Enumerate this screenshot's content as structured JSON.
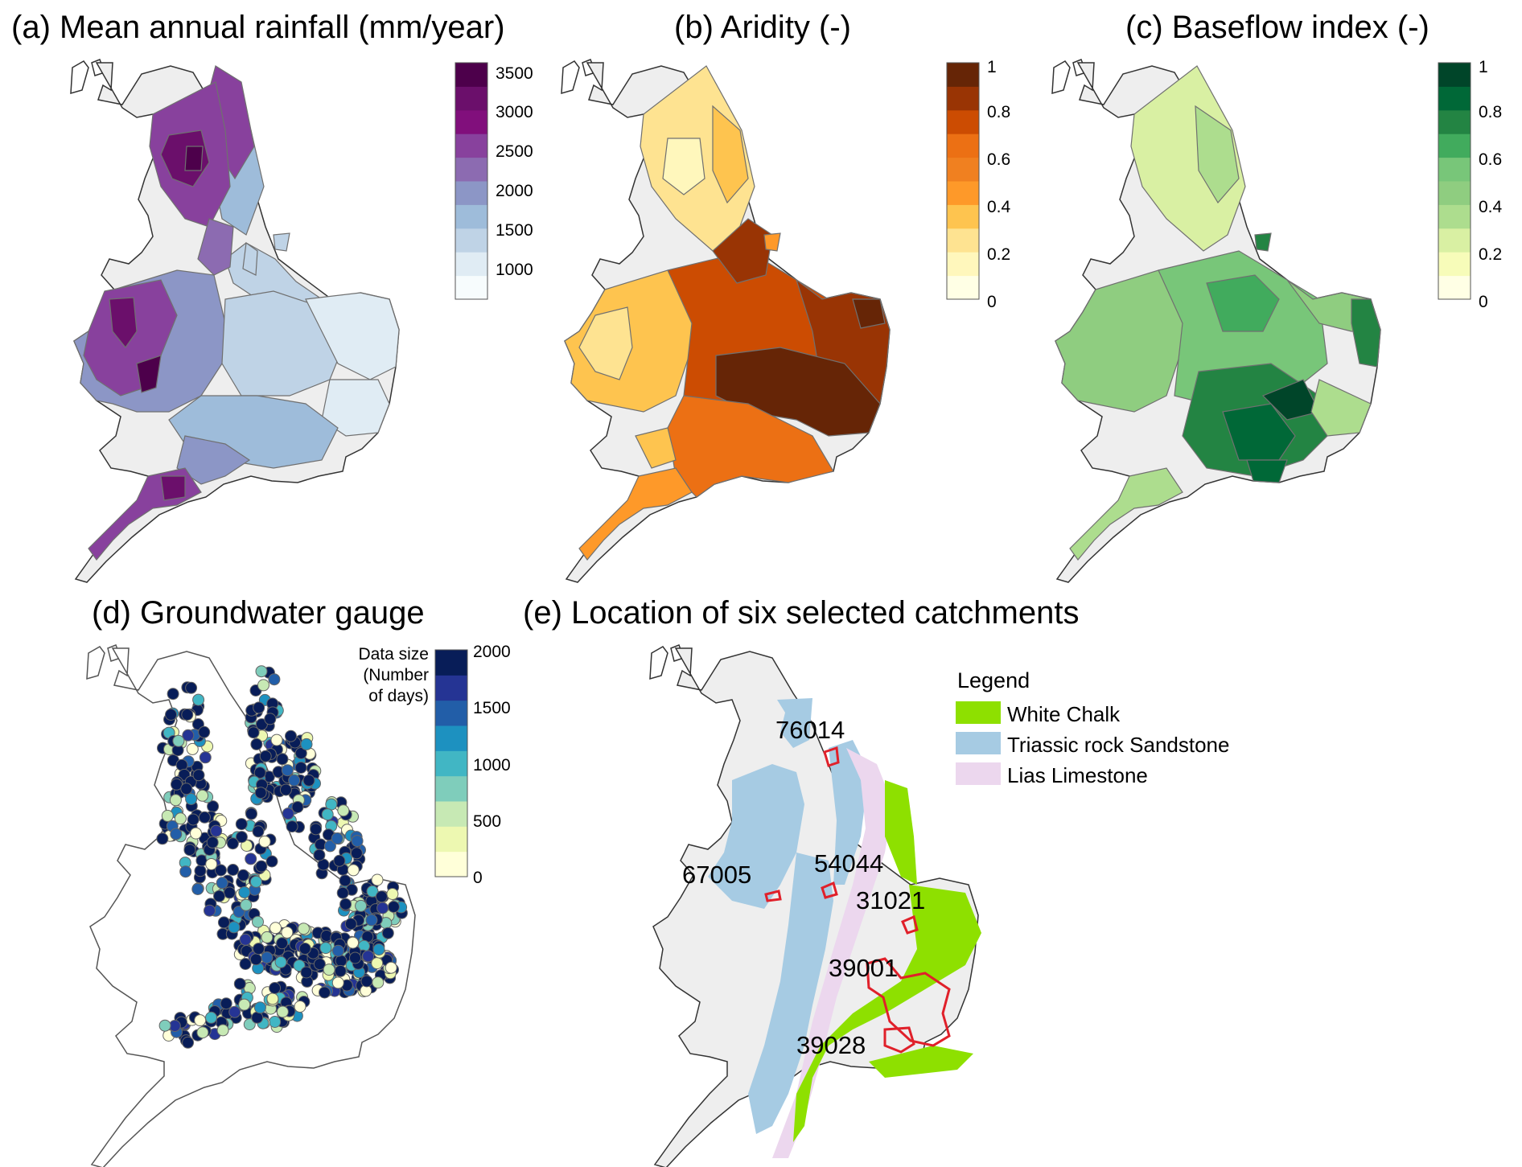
{
  "panels": {
    "a": {
      "title": "(a) Mean annual rainfall (mm/year)",
      "colorbar": {
        "ticks": [
          "3500",
          "3000",
          "2500",
          "2000",
          "1500",
          "1000"
        ],
        "colors": [
          "#f7fcfd",
          "#e0ecf4",
          "#bfd3e6",
          "#9ebcda",
          "#8c96c6",
          "#8c6bb1",
          "#88419d",
          "#810f7c",
          "#6b0f6b",
          "#4d004b"
        ]
      }
    },
    "b": {
      "title": "(b) Aridity (-)",
      "colorbar": {
        "ticks": [
          "1",
          "0.8",
          "0.6",
          "0.4",
          "0.2",
          "0"
        ],
        "colors": [
          "#ffffe5",
          "#fff7bc",
          "#fee391",
          "#fec44f",
          "#fe9929",
          "#f08020",
          "#ec7014",
          "#cc4c02",
          "#993404",
          "#662506"
        ]
      }
    },
    "c": {
      "title": "(c) Baseflow index (-)",
      "colorbar": {
        "ticks": [
          "1",
          "0.8",
          "0.6",
          "0.4",
          "0.2",
          "0"
        ],
        "colors": [
          "#ffffe5",
          "#f7fcb9",
          "#d9f0a3",
          "#addd8e",
          "#8fcd80",
          "#78c679",
          "#41ab5d",
          "#238443",
          "#006837",
          "#004529"
        ]
      }
    },
    "d": {
      "title": "(d) Groundwater gauge",
      "colorbar": {
        "title": [
          "Data size",
          "(Number",
          "of days)"
        ],
        "ticks": [
          "2000",
          "1500",
          "1000",
          "500",
          "0"
        ],
        "colors": [
          "#ffffd9",
          "#edf8b1",
          "#c7e9b4",
          "#7fcdbb",
          "#41b6c4",
          "#1d91c0",
          "#225ea8",
          "#253494",
          "#081d58"
        ]
      }
    },
    "e": {
      "title": "(e) Location of six selected catchments",
      "legend": {
        "title": "Legend",
        "items": [
          {
            "label": "White Chalk",
            "color": "#8ee000"
          },
          {
            "label": "Triassic rock Sandstone",
            "color": "#a6cbe3"
          },
          {
            "label": "Lias Limestone",
            "color": "#ecd7ee"
          }
        ]
      },
      "catchments": [
        "76014",
        "67005",
        "54044",
        "31021",
        "39001",
        "39028"
      ],
      "catchment_outline_color": "#e0202a"
    }
  }
}
